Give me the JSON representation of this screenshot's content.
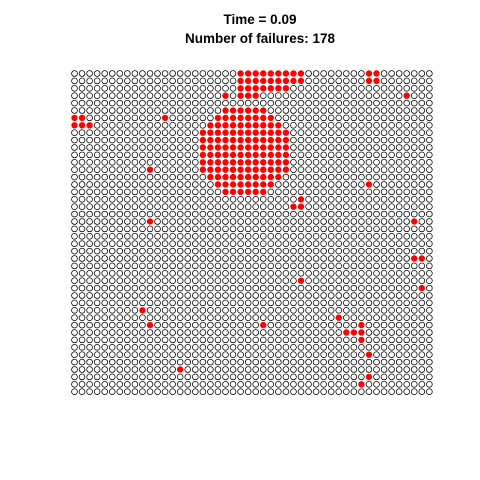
{
  "title": {
    "time_line": "Time = 0.09",
    "failures_line": "Number of failures: 178"
  },
  "chart_data": {
    "type": "scatter",
    "title": "Time = 0.09\nNumber of failures: 178",
    "grid": {
      "cols": 48,
      "rows": 44
    },
    "status_colors": {
      "ok": "#000000",
      "failed": "#ff0000"
    },
    "ok_marker": "open-circle",
    "failed_marker": "filled-circle",
    "failures_total": 178,
    "failed_clusters": [
      {
        "center": [
          22.5,
          10.5
        ],
        "radius": 6.2
      }
    ],
    "failed_cells": [
      [
        22,
        0
      ],
      [
        23,
        0
      ],
      [
        24,
        0
      ],
      [
        25,
        0
      ],
      [
        26,
        0
      ],
      [
        27,
        0
      ],
      [
        28,
        0
      ],
      [
        29,
        0
      ],
      [
        30,
        0
      ],
      [
        22,
        1
      ],
      [
        23,
        1
      ],
      [
        24,
        1
      ],
      [
        25,
        1
      ],
      [
        26,
        1
      ],
      [
        27,
        1
      ],
      [
        28,
        1
      ],
      [
        29,
        1
      ],
      [
        30,
        1
      ],
      [
        22,
        2
      ],
      [
        23,
        2
      ],
      [
        24,
        2
      ],
      [
        25,
        2
      ],
      [
        26,
        2
      ],
      [
        27,
        2
      ],
      [
        28,
        2
      ],
      [
        22,
        3
      ],
      [
        23,
        3
      ],
      [
        24,
        3
      ],
      [
        20,
        3
      ],
      [
        39,
        0
      ],
      [
        40,
        0
      ],
      [
        39,
        1
      ],
      [
        40,
        1
      ],
      [
        44,
        3
      ],
      [
        0,
        6
      ],
      [
        1,
        6
      ],
      [
        0,
        7
      ],
      [
        1,
        7
      ],
      [
        2,
        7
      ],
      [
        12,
        6
      ],
      [
        10,
        13
      ],
      [
        39,
        15
      ],
      [
        30,
        17
      ],
      [
        30,
        18
      ],
      [
        29,
        18
      ],
      [
        10,
        20
      ],
      [
        45,
        20
      ],
      [
        45,
        25
      ],
      [
        46,
        25
      ],
      [
        30,
        28
      ],
      [
        46,
        29
      ],
      [
        9,
        32
      ],
      [
        35,
        33
      ],
      [
        10,
        34
      ],
      [
        25,
        34
      ],
      [
        38,
        34
      ],
      [
        36,
        35
      ],
      [
        37,
        35
      ],
      [
        38,
        35
      ],
      [
        38,
        36
      ],
      [
        39,
        38
      ],
      [
        14,
        40
      ],
      [
        39,
        41
      ],
      [
        38,
        42
      ]
    ]
  }
}
